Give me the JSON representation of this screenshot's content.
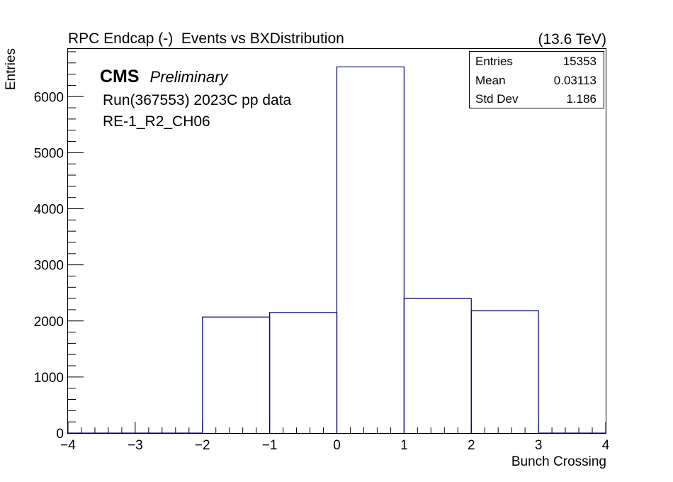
{
  "header": {
    "title": "RPC Endcap (-)  Events vs BXDistribution",
    "energy": "(13.6 TeV)"
  },
  "labels": {
    "cms": "CMS",
    "preliminary": "Preliminary",
    "run": "Run(367553) 2023C pp data",
    "chamber": "RE-1_R2_CH06"
  },
  "stats": [
    {
      "key": "Entries",
      "value": "15353"
    },
    {
      "key": "Mean",
      "value": "0.03113"
    },
    {
      "key": "Std Dev",
      "value": "1.186"
    }
  ],
  "chart_data": {
    "type": "bar",
    "histogram": true,
    "bin_edges": [
      -4,
      -3,
      -2,
      -1,
      0,
      1,
      2,
      3,
      4
    ],
    "values": [
      0,
      0,
      2070,
      2150,
      6530,
      2400,
      2180,
      0
    ],
    "xlabel": "Bunch Crossing",
    "ylabel": "Entries",
    "xlim": [
      -4,
      4
    ],
    "ylim": [
      0,
      6850
    ],
    "xticks": [
      -4,
      -3,
      -2,
      -1,
      0,
      1,
      2,
      3,
      4
    ],
    "xtick_labels": [
      "−4",
      "−3",
      "−2",
      "−1",
      "0",
      "1",
      "2",
      "3",
      "4"
    ],
    "yticks": [
      0,
      1000,
      2000,
      3000,
      4000,
      5000,
      6000
    ],
    "ytick_labels": [
      "0",
      "1000",
      "2000",
      "3000",
      "4000",
      "5000",
      "6000"
    ],
    "line_color": "#000080",
    "grid": false
  }
}
